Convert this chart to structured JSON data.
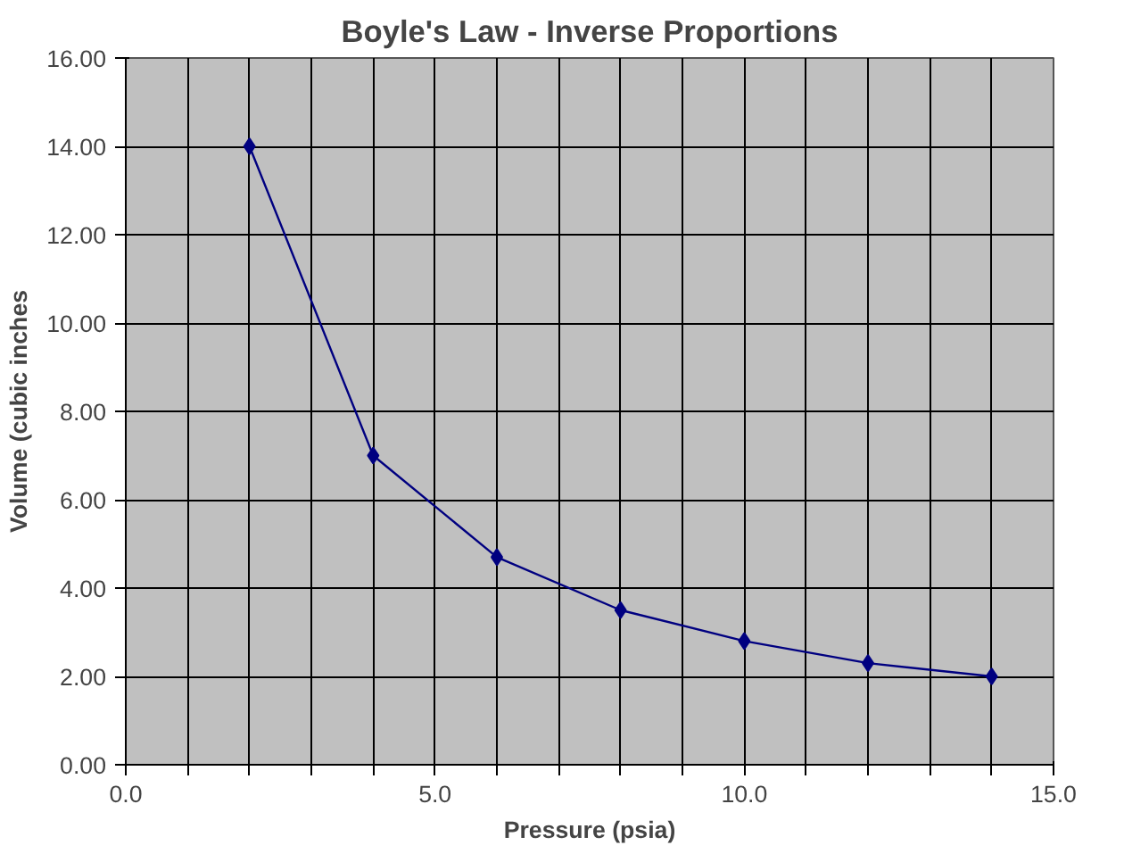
{
  "chart_data": {
    "type": "line",
    "title": "Boyle's Law - Inverse Proportions",
    "xlabel": "Pressure (psia)",
    "ylabel": "Volume (cubic inches",
    "x": [
      2,
      4,
      6,
      8,
      10,
      12,
      14
    ],
    "series": [
      {
        "color": "#000080",
        "values": [
          14,
          7,
          4.7,
          3.5,
          2.8,
          2.3,
          2.0
        ]
      }
    ],
    "xlim": [
      0,
      15
    ],
    "xticks": [
      {
        "value": 0,
        "label": "0.0"
      },
      {
        "value": 1,
        "label": null
      },
      {
        "value": 2,
        "label": null
      },
      {
        "value": 3,
        "label": null
      },
      {
        "value": 4,
        "label": null
      },
      {
        "value": 5,
        "label": "5.0"
      },
      {
        "value": 6,
        "label": null
      },
      {
        "value": 7,
        "label": null
      },
      {
        "value": 8,
        "label": null
      },
      {
        "value": 9,
        "label": null
      },
      {
        "value": 10,
        "label": "10.0"
      },
      {
        "value": 11,
        "label": null
      },
      {
        "value": 12,
        "label": null
      },
      {
        "value": 13,
        "label": null
      },
      {
        "value": 14,
        "label": null
      },
      {
        "value": 15,
        "label": "15.0"
      }
    ],
    "ylim": [
      0,
      16
    ],
    "yticks": [
      {
        "value": 0,
        "label": "0.00"
      },
      {
        "value": 2,
        "label": "2.00"
      },
      {
        "value": 4,
        "label": "4.00"
      },
      {
        "value": 6,
        "label": "6.00"
      },
      {
        "value": 8,
        "label": "8.00"
      },
      {
        "value": 10,
        "label": "10.00"
      },
      {
        "value": 12,
        "label": "12.00"
      },
      {
        "value": 14,
        "label": "14.00"
      },
      {
        "value": 16,
        "label": "16.00"
      }
    ],
    "grid": true,
    "marker": "diamond",
    "line_style": "solid"
  }
}
